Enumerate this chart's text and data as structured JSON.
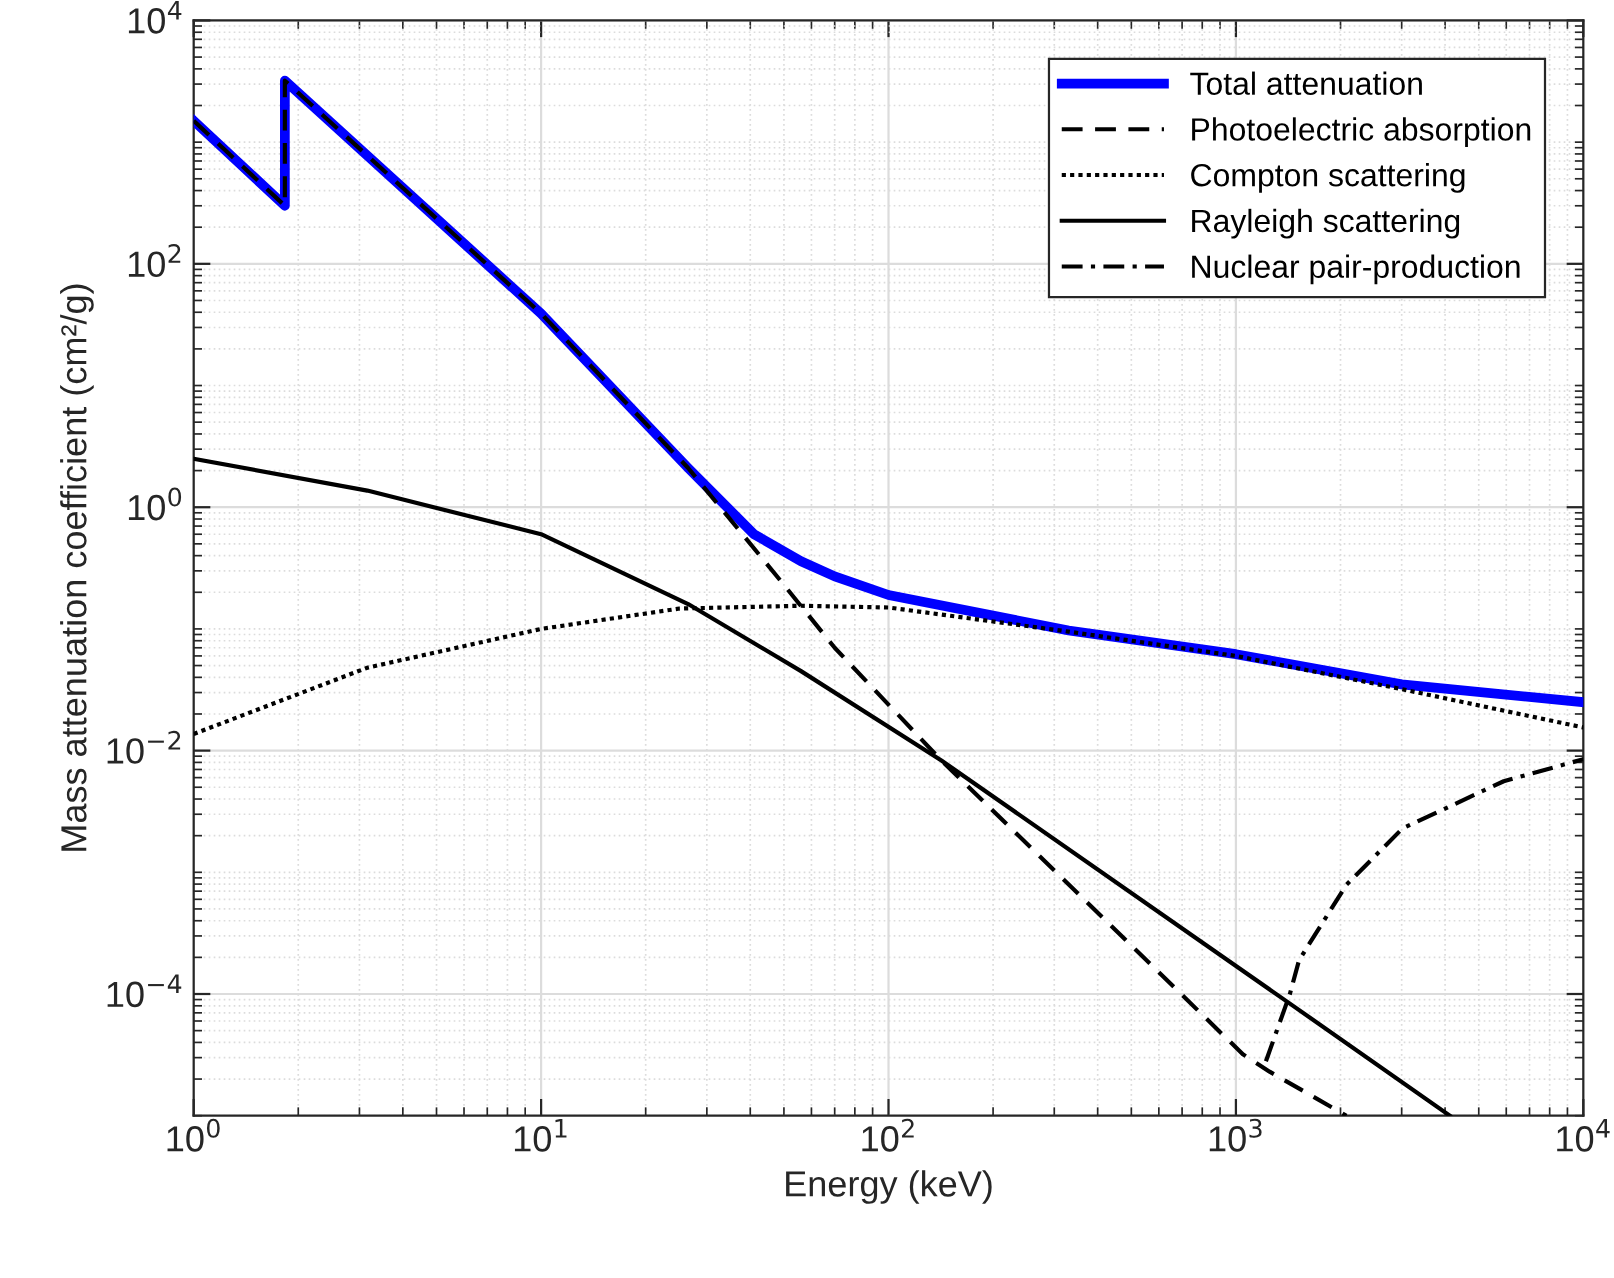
{
  "chart_data": {
    "type": "line",
    "xlabel": "Energy (keV)",
    "ylabel": "Mass attenuation coefficient (cm²/g)",
    "log": "xy",
    "xlim": [
      1,
      10000
    ],
    "ylim": [
      1e-05,
      10000
    ],
    "xticks": [
      {
        "value": 1,
        "label": "10$^{0}$"
      },
      {
        "value": 10,
        "label": "10$^{1}$"
      },
      {
        "value": 100,
        "label": "10$^{2}$"
      },
      {
        "value": 1000,
        "label": "10$^{3}$"
      },
      {
        "value": 10000,
        "label": "10$^{4}$"
      }
    ],
    "yticks": [
      {
        "value": 0.0001,
        "label": "10$^{−4}$"
      },
      {
        "value": 0.01,
        "label": "10$^{−2}$"
      },
      {
        "value": 1,
        "label": "10$^{0}$"
      },
      {
        "value": 100,
        "label": "10$^{2}$"
      },
      {
        "value": 10000,
        "label": "10$^{4}$"
      }
    ],
    "grid": true,
    "legend": "top right",
    "marker": "none",
    "series": [
      {
        "name": "Total attenuation",
        "color": "#0000ff",
        "line_style": "solid",
        "x": [
          1,
          1.83,
          1.83,
          10,
          26.5,
          41,
          56,
          70,
          100,
          330,
          1000,
          3000,
          10000
        ],
        "values": [
          1500,
          300,
          3200,
          39,
          2.1,
          0.6,
          0.36,
          0.27,
          0.19,
          0.097,
          0.062,
          0.035,
          0.025
        ]
      },
      {
        "name": "Photoelectric absorption",
        "color": "#000000",
        "line_style": "dashed",
        "x": [
          1,
          1.83,
          1.83,
          10,
          26.5,
          50,
          70,
          142,
          1047,
          1250,
          2080
        ],
        "values": [
          1500,
          300,
          3200,
          39,
          2.1,
          0.23,
          0.07,
          0.0083,
          3.2e-05,
          2.3e-05,
          1e-05
        ]
      },
      {
        "name": "Compton scattering",
        "color": "#000000",
        "line_style": "dotted",
        "x": [
          1,
          3.16,
          10,
          25,
          56,
          100,
          330,
          1000,
          3000,
          10000
        ],
        "values": [
          0.0137,
          0.048,
          0.1,
          0.147,
          0.155,
          0.15,
          0.095,
          0.06,
          0.032,
          0.0155
        ]
      },
      {
        "name": "Rayleigh scattering",
        "color": "#000000",
        "line_style": "solid",
        "x": [
          1,
          3.16,
          10,
          26.5,
          56,
          142,
          1400,
          4130
        ],
        "values": [
          2.5,
          1.37,
          0.6,
          0.16,
          0.045,
          0.0083,
          8.7e-05,
          1e-05
        ]
      },
      {
        "name": "Nuclear pair-production",
        "color": "#000000",
        "line_style": "dashdot",
        "x": [
          1220,
          1430,
          1520,
          2080,
          3020,
          5900,
          10000
        ],
        "values": [
          2.8e-05,
          0.0001,
          0.00019,
          0.00079,
          0.0023,
          0.0056,
          0.0085
        ]
      }
    ]
  }
}
